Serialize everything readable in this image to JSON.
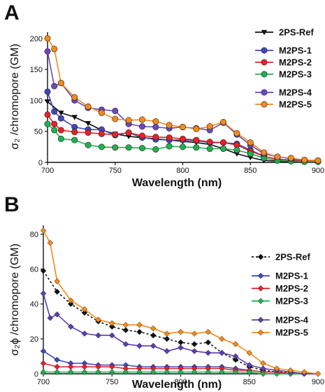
{
  "chart_data": [
    {
      "panel": "A",
      "type": "line",
      "xlabel": "Wavelength (nm)",
      "ylabel": "σ₂ /chromopore (GM)",
      "xlim": [
        700,
        900
      ],
      "ylim": [
        0,
        210
      ],
      "xticks": [
        700,
        750,
        800,
        850,
        900
      ],
      "yticks": [
        0,
        50,
        100,
        150,
        200
      ],
      "legend_position": "right",
      "series": [
        {
          "name": "2PS-Ref",
          "color": "#111111",
          "marker": "triangle-down",
          "dashed": false,
          "x": [
            700,
            710,
            720,
            730,
            740,
            750,
            760,
            770,
            780,
            790,
            800,
            810,
            820,
            830,
            840,
            850,
            860,
            870,
            880,
            890,
            900
          ],
          "values": [
            98,
            80,
            73,
            63,
            52,
            46,
            42,
            40,
            38,
            36,
            34,
            32,
            29,
            22,
            14,
            8,
            3,
            2,
            1,
            1,
            0
          ]
        },
        {
          "name": "M2PS-1",
          "color": "#3f48b8",
          "marker": "circle",
          "dashed": false,
          "x": [
            700,
            705,
            710,
            720,
            730,
            740,
            750,
            760,
            770,
            780,
            790,
            800,
            810,
            820,
            830,
            840,
            850,
            860,
            870,
            880,
            890,
            900
          ],
          "values": [
            114,
            82,
            71,
            57,
            53,
            53,
            44,
            48,
            40,
            37,
            36,
            36,
            35,
            32,
            32,
            30,
            20,
            10,
            5,
            4,
            3,
            2
          ]
        },
        {
          "name": "M2PS-2",
          "color": "#e52229",
          "marker": "circle",
          "dashed": false,
          "x": [
            700,
            705,
            710,
            720,
            730,
            740,
            750,
            760,
            770,
            780,
            790,
            800,
            810,
            820,
            830,
            840,
            850,
            860,
            870,
            880,
            890,
            900
          ],
          "values": [
            77,
            62,
            52,
            49,
            48,
            46,
            45,
            48,
            43,
            41,
            40,
            38,
            36,
            33,
            32,
            28,
            18,
            10,
            5,
            3,
            2,
            2
          ]
        },
        {
          "name": "M2PS-3",
          "color": "#20b050",
          "marker": "circle",
          "dashed": false,
          "x": [
            700,
            705,
            710,
            720,
            730,
            740,
            750,
            760,
            770,
            780,
            790,
            800,
            810,
            820,
            830,
            840,
            850,
            860,
            870,
            880,
            890,
            900
          ],
          "values": [
            62,
            52,
            38,
            36,
            28,
            25,
            24,
            24,
            23,
            21,
            26,
            25,
            24,
            22,
            22,
            20,
            14,
            7,
            3,
            2,
            1,
            1
          ]
        },
        {
          "name": "M2PS-4",
          "color": "#6a4ab8",
          "marker": "circle",
          "dashed": false,
          "x": [
            700,
            705,
            710,
            720,
            730,
            740,
            750,
            760,
            770,
            780,
            790,
            800,
            810,
            820,
            830,
            840,
            850,
            860,
            870,
            880,
            890,
            900
          ],
          "values": [
            179,
            123,
            128,
            100,
            88,
            85,
            83,
            62,
            58,
            57,
            55,
            57,
            55,
            52,
            64,
            45,
            28,
            14,
            9,
            6,
            4,
            3
          ]
        },
        {
          "name": "M2PS-5",
          "color": "#f48a1a",
          "marker": "circle",
          "dashed": false,
          "x": [
            700,
            705,
            710,
            720,
            730,
            740,
            750,
            760,
            770,
            780,
            790,
            800,
            810,
            820,
            830,
            840,
            850,
            860,
            870,
            880,
            890,
            900
          ],
          "values": [
            200,
            183,
            128,
            105,
            90,
            80,
            70,
            68,
            69,
            66,
            60,
            57,
            54,
            58,
            65,
            47,
            32,
            16,
            9,
            7,
            4,
            3
          ]
        }
      ]
    },
    {
      "panel": "B",
      "type": "line",
      "xlabel": "Wavelength (nm)",
      "ylabel": "σ₂ϕ /chromopore (GM)",
      "xlim": [
        700,
        900
      ],
      "ylim": [
        0,
        85
      ],
      "xticks": [
        700,
        750,
        800,
        850,
        900
      ],
      "yticks": [
        0,
        20,
        40,
        60,
        80
      ],
      "legend_position": "right",
      "series": [
        {
          "name": "2PS-Ref",
          "color": "#111111",
          "marker": "diamond",
          "dashed": true,
          "x": [
            700,
            710,
            720,
            730,
            740,
            750,
            760,
            770,
            780,
            790,
            800,
            810,
            820,
            830,
            840,
            850,
            860,
            870,
            880,
            890,
            900
          ],
          "values": [
            59,
            47,
            40,
            35,
            30,
            27,
            25,
            24,
            22,
            20,
            18,
            17,
            18,
            12,
            8,
            4,
            2,
            1,
            1,
            0,
            0
          ]
        },
        {
          "name": "M2PS-1",
          "color": "#3f48b8",
          "marker": "diamond",
          "dashed": false,
          "x": [
            700,
            710,
            720,
            730,
            740,
            750,
            760,
            770,
            780,
            790,
            800,
            810,
            820,
            830,
            840,
            850,
            860,
            870,
            880,
            890,
            900
          ],
          "values": [
            13,
            8,
            6,
            6,
            5,
            5,
            5,
            4,
            4,
            4,
            4,
            4,
            4,
            4,
            3,
            2,
            1,
            1,
            0,
            0,
            0
          ]
        },
        {
          "name": "M2PS-2",
          "color": "#e52229",
          "marker": "diamond",
          "dashed": false,
          "x": [
            700,
            710,
            720,
            730,
            740,
            750,
            760,
            770,
            780,
            790,
            800,
            810,
            820,
            830,
            840,
            850,
            860,
            870,
            880,
            890,
            900
          ],
          "values": [
            6,
            4,
            4,
            4,
            4,
            4,
            3,
            3,
            3,
            3,
            3,
            3,
            3,
            3,
            2,
            2,
            1,
            1,
            0,
            0,
            0
          ]
        },
        {
          "name": "M2PS-3",
          "color": "#20b050",
          "marker": "diamond",
          "dashed": false,
          "x": [
            700,
            710,
            720,
            730,
            740,
            750,
            760,
            770,
            780,
            790,
            800,
            810,
            820,
            830,
            840,
            850,
            860,
            870,
            880,
            890,
            900
          ],
          "values": [
            1,
            1,
            1,
            1,
            1,
            1,
            1,
            1,
            1,
            1,
            1,
            1,
            1,
            1,
            1,
            1,
            0,
            0,
            0,
            0,
            0
          ]
        },
        {
          "name": "M2PS-4",
          "color": "#5a3eb0",
          "marker": "diamond",
          "dashed": false,
          "x": [
            700,
            705,
            710,
            720,
            730,
            740,
            750,
            760,
            770,
            780,
            790,
            800,
            810,
            820,
            830,
            840,
            850,
            860,
            870,
            880,
            890,
            900
          ],
          "values": [
            46,
            32,
            34,
            27,
            23,
            22,
            22,
            17,
            16,
            16,
            13,
            15,
            13,
            12,
            12,
            10,
            5,
            3,
            2,
            1,
            0,
            0
          ]
        },
        {
          "name": "M2PS-5",
          "color": "#f48a1a",
          "marker": "diamond",
          "dashed": false,
          "x": [
            700,
            705,
            710,
            720,
            730,
            740,
            750,
            760,
            770,
            780,
            790,
            800,
            810,
            820,
            830,
            840,
            850,
            860,
            870,
            880,
            890,
            900
          ],
          "values": [
            82,
            75,
            53,
            42,
            37,
            31,
            29,
            28,
            28,
            26,
            23,
            24,
            23,
            24,
            20,
            17,
            12,
            6,
            3,
            2,
            1,
            0
          ]
        }
      ]
    }
  ]
}
